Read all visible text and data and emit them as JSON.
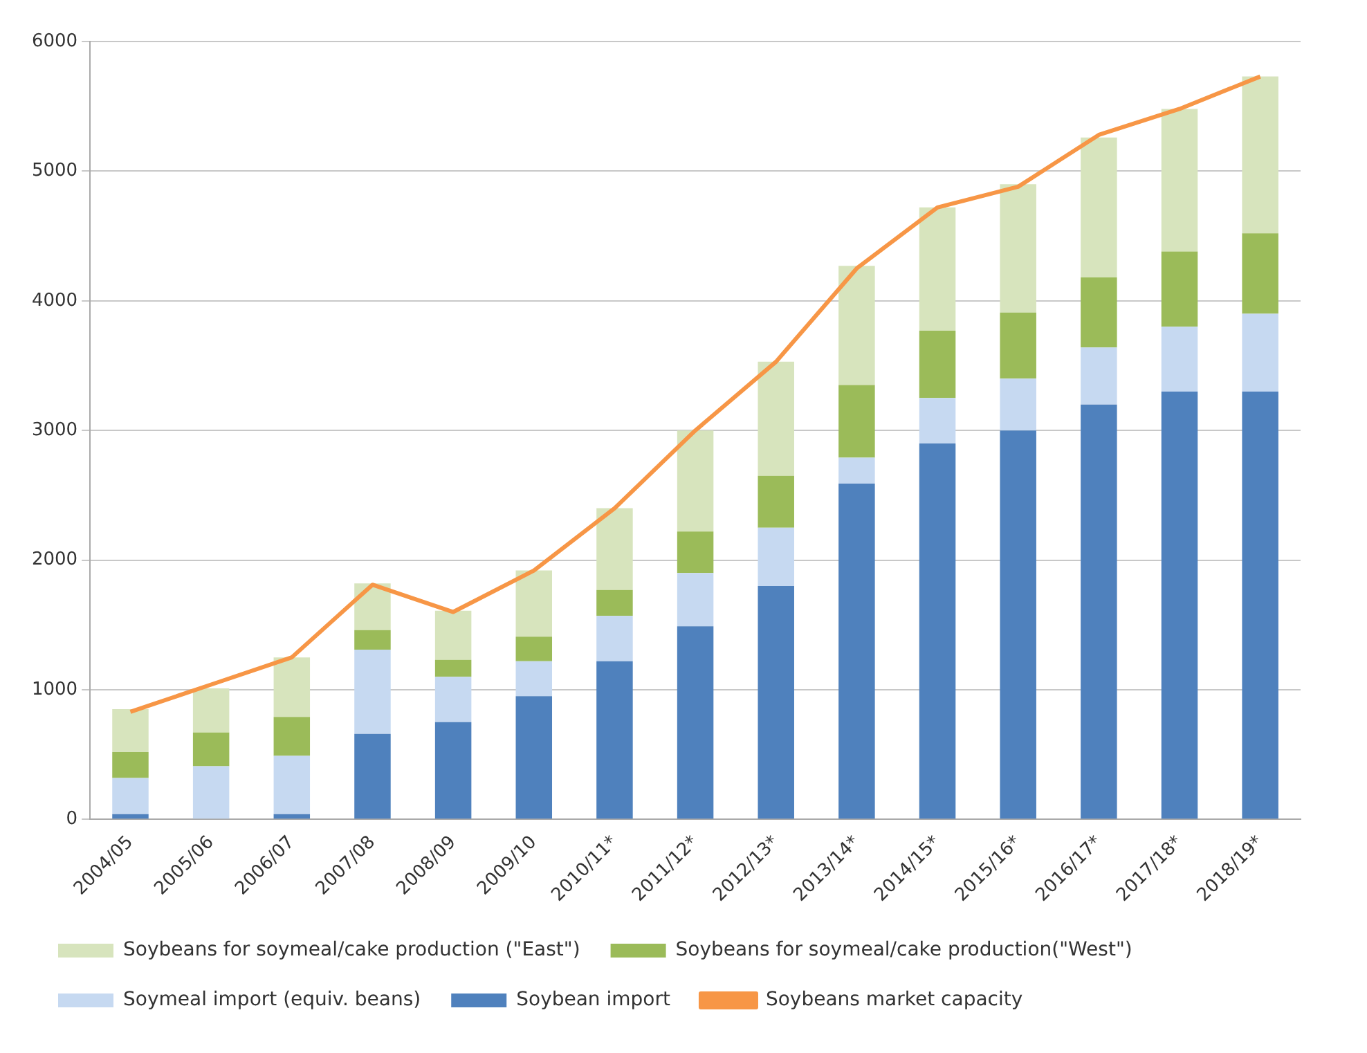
{
  "chart_data": {
    "type": "bar",
    "stacked": true,
    "categories": [
      "2004/05",
      "2005/06",
      "2006/07",
      "2007/08",
      "2008/09",
      "2009/10",
      "2010/11*",
      "2011/12*",
      "2012/13*",
      "2013/14*",
      "2014/15*",
      "2015/16*",
      "2016/17*",
      "2017/18*",
      "2018/19*"
    ],
    "series": [
      {
        "name": "Soybean import",
        "color": "#4f81bd",
        "values": [
          40,
          0,
          40,
          660,
          750,
          950,
          1220,
          1490,
          1800,
          2590,
          2900,
          3000,
          3200,
          3300,
          3300
        ]
      },
      {
        "name": "Soymeal import (equiv. beans)",
        "color": "#c6d9f1",
        "values": [
          280,
          410,
          450,
          650,
          350,
          270,
          350,
          410,
          450,
          200,
          350,
          400,
          440,
          500,
          600
        ]
      },
      {
        "name": "Soybeans for soymeal/cake production(\"West\")",
        "color": "#9bbb59",
        "values": [
          200,
          260,
          300,
          150,
          130,
          190,
          200,
          320,
          400,
          560,
          520,
          510,
          540,
          580,
          620
        ]
      },
      {
        "name": "Soybeans for soymeal/cake production (\"East\")",
        "color": "#d7e4bd",
        "values": [
          330,
          340,
          460,
          360,
          380,
          510,
          630,
          780,
          880,
          920,
          950,
          990,
          1080,
          1100,
          1210
        ]
      },
      {
        "name": "Soybeans market capacity",
        "type": "line",
        "color": "#f79646",
        "values": [
          830,
          1040,
          1250,
          1810,
          1600,
          1920,
          2400,
          3000,
          3530,
          4250,
          4720,
          4880,
          5280,
          5480,
          5730
        ]
      }
    ],
    "ylim": [
      0,
      6000
    ],
    "yticks": [
      0,
      1000,
      2000,
      3000,
      4000,
      5000,
      6000
    ],
    "grid": "y",
    "legend": "bottom",
    "marker": "none"
  }
}
